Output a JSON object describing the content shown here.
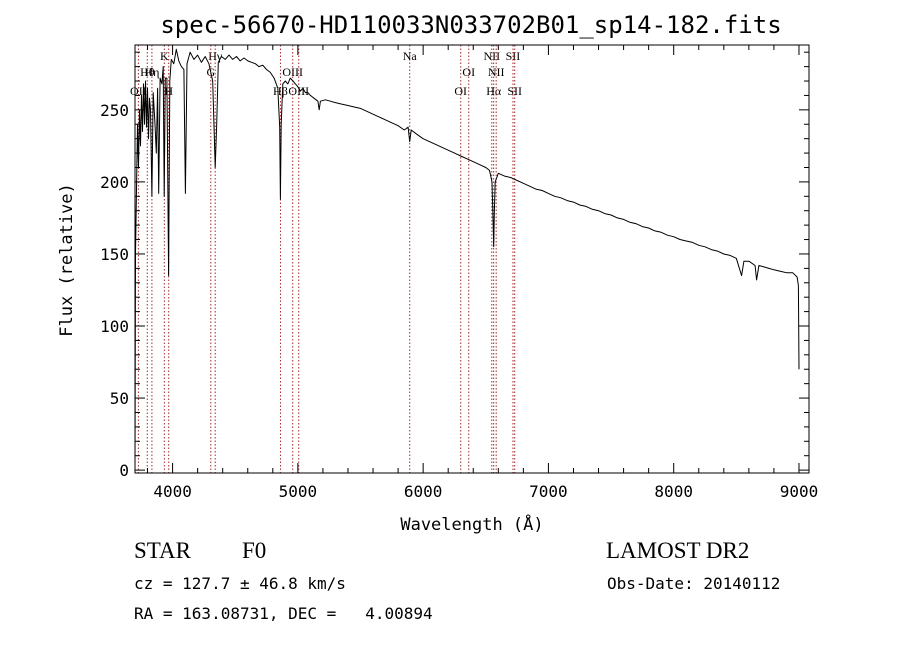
{
  "chart_data": {
    "type": "line",
    "title": "spec-56670-HD110033N033702B01_sp14-182.fits",
    "xlabel": "Wavelength (Å)",
    "ylabel": "Flux (relative)",
    "xlim": [
      3700,
      9080
    ],
    "ylim": [
      -2,
      295
    ],
    "xticks": [
      4000,
      5000,
      6000,
      7000,
      8000,
      9000
    ],
    "yticks": [
      0,
      50,
      100,
      150,
      200,
      250
    ],
    "grid": false,
    "line_color": "#000000",
    "marker_color": "#a52a2a",
    "series": [
      {
        "values": [
          [
            3700,
            0
          ],
          [
            3702,
            90
          ],
          [
            3704,
            150
          ],
          [
            3712,
            195
          ],
          [
            3720,
            240
          ],
          [
            3728,
            210
          ],
          [
            3736,
            250
          ],
          [
            3744,
            225
          ],
          [
            3752,
            260
          ],
          [
            3760,
            235
          ],
          [
            3768,
            268
          ],
          [
            3776,
            240
          ],
          [
            3784,
            270
          ],
          [
            3792,
            238
          ],
          [
            3800,
            265
          ],
          [
            3808,
            230
          ],
          [
            3816,
            258
          ],
          [
            3824,
            250
          ],
          [
            3835,
            190
          ],
          [
            3845,
            262
          ],
          [
            3860,
            240
          ],
          [
            3870,
            220
          ],
          [
            3880,
            265
          ],
          [
            3889,
            192
          ],
          [
            3900,
            272
          ],
          [
            3915,
            268
          ],
          [
            3925,
            280
          ],
          [
            3933,
            190
          ],
          [
            3942,
            272
          ],
          [
            3955,
            272
          ],
          [
            3968,
            135
          ],
          [
            3978,
            270
          ],
          [
            3990,
            285
          ],
          [
            4010,
            282
          ],
          [
            4030,
            292
          ],
          [
            4050,
            284
          ],
          [
            4070,
            280
          ],
          [
            4090,
            278
          ],
          [
            4102,
            192
          ],
          [
            4115,
            282
          ],
          [
            4140,
            290
          ],
          [
            4170,
            285
          ],
          [
            4200,
            288
          ],
          [
            4230,
            283
          ],
          [
            4260,
            287
          ],
          [
            4290,
            282
          ],
          [
            4320,
            270
          ],
          [
            4340,
            210
          ],
          [
            4352,
            240
          ],
          [
            4365,
            283
          ],
          [
            4390,
            287
          ],
          [
            4420,
            285
          ],
          [
            4450,
            288
          ],
          [
            4480,
            285
          ],
          [
            4510,
            287
          ],
          [
            4540,
            284
          ],
          [
            4570,
            286
          ],
          [
            4600,
            284
          ],
          [
            4630,
            283
          ],
          [
            4660,
            282
          ],
          [
            4690,
            280
          ],
          [
            4720,
            281
          ],
          [
            4750,
            278
          ],
          [
            4780,
            276
          ],
          [
            4810,
            272
          ],
          [
            4840,
            265
          ],
          [
            4855,
            238
          ],
          [
            4861,
            188
          ],
          [
            4867,
            240
          ],
          [
            4880,
            268
          ],
          [
            4900,
            270
          ],
          [
            4920,
            268
          ],
          [
            4940,
            272
          ],
          [
            4960,
            270
          ],
          [
            4980,
            268
          ],
          [
            5000,
            266
          ],
          [
            5020,
            263
          ],
          [
            5040,
            265
          ],
          [
            5060,
            262
          ],
          [
            5080,
            262
          ],
          [
            5100,
            260
          ],
          [
            5130,
            258
          ],
          [
            5160,
            256
          ],
          [
            5170,
            250
          ],
          [
            5180,
            256
          ],
          [
            5220,
            257
          ],
          [
            5260,
            256
          ],
          [
            5300,
            255
          ],
          [
            5350,
            254
          ],
          [
            5400,
            253
          ],
          [
            5450,
            252
          ],
          [
            5500,
            251
          ],
          [
            5550,
            249
          ],
          [
            5600,
            247
          ],
          [
            5650,
            245
          ],
          [
            5700,
            243
          ],
          [
            5750,
            241
          ],
          [
            5800,
            239
          ],
          [
            5850,
            236
          ],
          [
            5880,
            238
          ],
          [
            5893,
            228
          ],
          [
            5905,
            236
          ],
          [
            5950,
            233
          ],
          [
            6000,
            230
          ],
          [
            6050,
            228
          ],
          [
            6100,
            226
          ],
          [
            6150,
            224
          ],
          [
            6200,
            222
          ],
          [
            6250,
            220
          ],
          [
            6300,
            218
          ],
          [
            6350,
            216
          ],
          [
            6400,
            214
          ],
          [
            6450,
            212
          ],
          [
            6500,
            210
          ],
          [
            6530,
            208
          ],
          [
            6550,
            200
          ],
          [
            6558,
            175
          ],
          [
            6563,
            155
          ],
          [
            6568,
            178
          ],
          [
            6575,
            200
          ],
          [
            6600,
            206
          ],
          [
            6650,
            204
          ],
          [
            6700,
            203
          ],
          [
            6750,
            201
          ],
          [
            6800,
            199
          ],
          [
            6850,
            197
          ],
          [
            6900,
            195
          ],
          [
            6950,
            194
          ],
          [
            7000,
            192
          ],
          [
            7050,
            190
          ],
          [
            7100,
            189
          ],
          [
            7150,
            187
          ],
          [
            7200,
            186
          ],
          [
            7250,
            184
          ],
          [
            7300,
            183
          ],
          [
            7350,
            181
          ],
          [
            7400,
            180
          ],
          [
            7450,
            178
          ],
          [
            7500,
            177
          ],
          [
            7550,
            175
          ],
          [
            7600,
            174
          ],
          [
            7650,
            172
          ],
          [
            7700,
            171
          ],
          [
            7750,
            169
          ],
          [
            7800,
            168
          ],
          [
            7850,
            166
          ],
          [
            7900,
            165
          ],
          [
            7950,
            163
          ],
          [
            8000,
            162
          ],
          [
            8050,
            160
          ],
          [
            8100,
            159
          ],
          [
            8150,
            158
          ],
          [
            8200,
            156
          ],
          [
            8250,
            155
          ],
          [
            8300,
            153
          ],
          [
            8350,
            152
          ],
          [
            8400,
            150
          ],
          [
            8450,
            149
          ],
          [
            8500,
            147
          ],
          [
            8542,
            135
          ],
          [
            8560,
            145
          ],
          [
            8600,
            145
          ],
          [
            8650,
            142
          ],
          [
            8662,
            132
          ],
          [
            8680,
            142
          ],
          [
            8720,
            141
          ],
          [
            8760,
            140
          ],
          [
            8800,
            139
          ],
          [
            8850,
            138
          ],
          [
            8900,
            137
          ],
          [
            8950,
            137
          ],
          [
            8985,
            134
          ],
          [
            8995,
            128
          ],
          [
            9000,
            70
          ]
        ]
      }
    ],
    "lines": [
      {
        "label": "OII",
        "x": 3727,
        "row": 3
      },
      {
        "label": "Hθ",
        "x": 3798,
        "row": 2
      },
      {
        "label": "Hη",
        "x": 3835,
        "row": 2
      },
      {
        "label": "K",
        "x": 3934,
        "row": 1
      },
      {
        "label": "H",
        "x": 3969,
        "row": 3
      },
      {
        "label": "Hγ",
        "x": 4340,
        "row": 1
      },
      {
        "label": "G",
        "x": 4305,
        "row": 2
      },
      {
        "label": "Hβ",
        "x": 4861,
        "row": 3
      },
      {
        "label": "OIII",
        "x": 4959,
        "row": 2
      },
      {
        "label": "OIII",
        "x": 5007,
        "row": 3
      },
      {
        "label": "Na",
        "x": 5893,
        "row": 1
      },
      {
        "label": "OI",
        "x": 6300,
        "row": 3
      },
      {
        "label": "OI",
        "x": 6364,
        "row": 2
      },
      {
        "label": "NII",
        "x": 6548,
        "row": 1
      },
      {
        "label": "Hα",
        "x": 6563,
        "row": 3
      },
      {
        "label": "NII",
        "x": 6583,
        "row": 2
      },
      {
        "label": "SII",
        "x": 6717,
        "row": 1
      },
      {
        "label": "SII",
        "x": 6731,
        "row": 3
      }
    ]
  },
  "info": {
    "class": "STAR",
    "subclass": "F0",
    "survey": "LAMOST DR2",
    "cz": "cz = 127.7 ± 46.8 km/s",
    "obs_date": "Obs-Date: 20140112",
    "radec": "RA = 163.08731, DEC =   4.00894"
  }
}
